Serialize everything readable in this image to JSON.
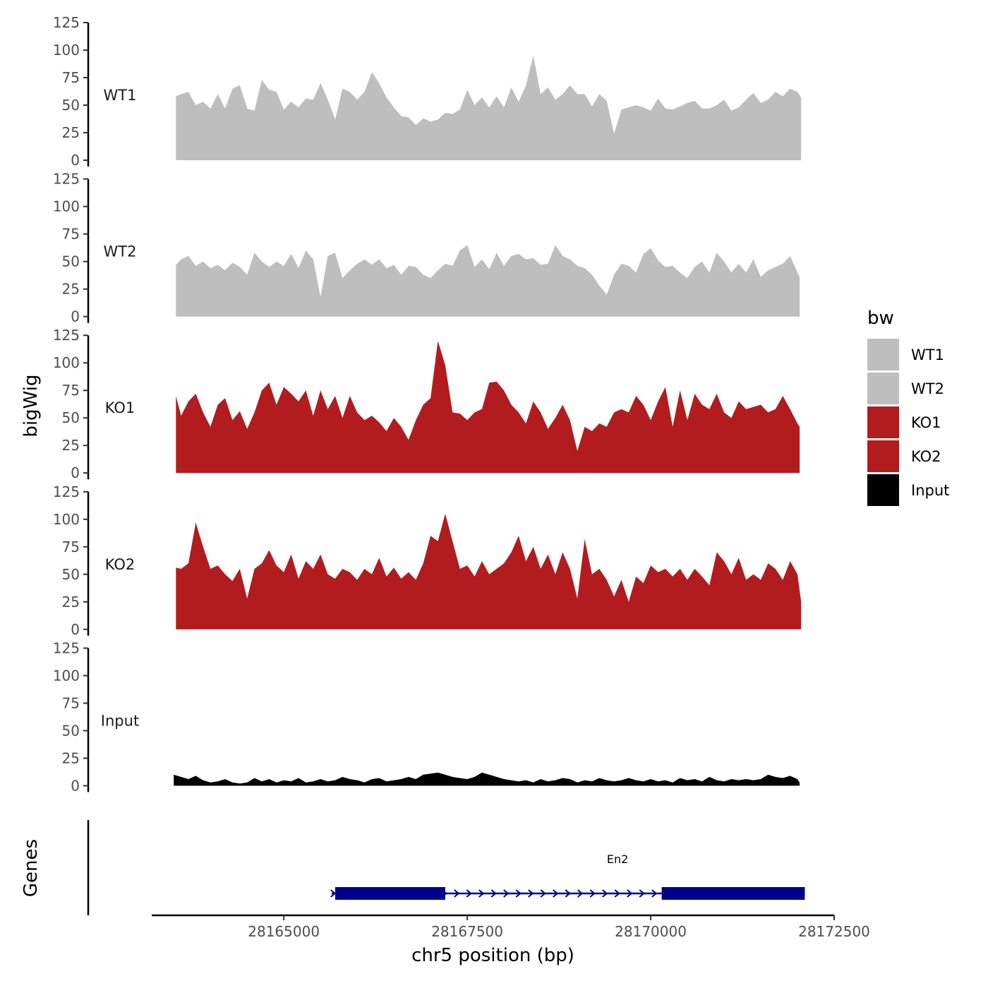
{
  "chart_data": {
    "type": "area",
    "layout": "stacked coverage tracks with gene annotation track",
    "ylabel": "bigWig",
    "xlabel": "chr5 position (bp)",
    "gene_track_label": "Genes",
    "chrom": "chr5",
    "xlim": [
      28163200,
      28172500
    ],
    "x_ticks": [
      28165000,
      28167500,
      28170000,
      28172500
    ],
    "x_tick_labels": [
      "28165000",
      "28167500",
      "28170000",
      "28172500"
    ],
    "ylim": [
      0,
      125
    ],
    "y_ticks": [
      0,
      25,
      50,
      75,
      100,
      125
    ],
    "y_tick_labels": [
      "0",
      "25",
      "50",
      "75",
      "100",
      "125"
    ],
    "grid": false,
    "legend": {
      "title": "bw",
      "placement": "right",
      "entries": [
        {
          "label": "WT1",
          "color": "#bebebe"
        },
        {
          "label": "WT2",
          "color": "#bebebe"
        },
        {
          "label": "KO1",
          "color": "#b21c1e"
        },
        {
          "label": "KO2",
          "color": "#b21c1e"
        },
        {
          "label": "Input",
          "color": "#000000"
        }
      ]
    },
    "series": [
      {
        "name": "WT1",
        "color": "#bebebe",
        "x": [
          28163530,
          28163600,
          28163700,
          28163800,
          28163900,
          28164000,
          28164100,
          28164200,
          28164300,
          28164400,
          28164500,
          28164600,
          28164700,
          28164800,
          28164900,
          28165000,
          28165100,
          28165200,
          28165300,
          28165400,
          28165500,
          28165600,
          28165700,
          28165800,
          28165900,
          28166000,
          28166100,
          28166200,
          28166300,
          28166400,
          28166500,
          28166600,
          28166700,
          28166800,
          28166900,
          28167000,
          28167100,
          28167200,
          28167300,
          28167400,
          28167500,
          28167600,
          28167700,
          28167800,
          28167900,
          28168000,
          28168100,
          28168200,
          28168300,
          28168400,
          28168500,
          28168600,
          28168700,
          28168800,
          28168900,
          28169000,
          28169100,
          28169200,
          28169300,
          28169400,
          28169500,
          28169600,
          28169700,
          28169800,
          28169900,
          28170000,
          28170100,
          28170200,
          28170300,
          28170400,
          28170500,
          28170600,
          28170700,
          28170800,
          28170900,
          28171000,
          28171100,
          28171200,
          28171300,
          28171400,
          28171500,
          28171600,
          28171700,
          28171800,
          28171900,
          28172000,
          28172050
        ],
        "values": [
          58,
          60,
          62,
          50,
          53,
          47,
          60,
          47,
          65,
          68,
          47,
          45,
          73,
          64,
          62,
          46,
          53,
          48,
          56,
          55,
          70,
          55,
          37,
          65,
          62,
          55,
          62,
          80,
          70,
          57,
          48,
          40,
          39,
          32,
          38,
          35,
          37,
          43,
          42,
          46,
          64,
          50,
          57,
          48,
          58,
          48,
          66,
          53,
          68,
          95,
          60,
          66,
          55,
          60,
          68,
          60,
          60,
          49,
          60,
          54,
          24,
          46,
          48,
          50,
          48,
          45,
          56,
          47,
          46,
          49,
          52,
          54,
          47,
          47,
          50,
          55,
          45,
          48,
          55,
          61,
          52,
          55,
          62,
          58,
          65,
          62,
          57
        ]
      },
      {
        "name": "WT2",
        "color": "#bebebe",
        "x": [
          28163530,
          28163600,
          28163700,
          28163800,
          28163900,
          28164000,
          28164100,
          28164200,
          28164300,
          28164400,
          28164500,
          28164600,
          28164700,
          28164800,
          28164900,
          28165000,
          28165100,
          28165200,
          28165300,
          28165400,
          28165500,
          28165600,
          28165700,
          28165800,
          28165900,
          28166000,
          28166100,
          28166200,
          28166300,
          28166400,
          28166500,
          28166600,
          28166700,
          28166800,
          28166900,
          28167000,
          28167100,
          28167200,
          28167300,
          28167400,
          28167500,
          28167600,
          28167700,
          28167800,
          28167900,
          28168000,
          28168100,
          28168200,
          28168300,
          28168400,
          28168500,
          28168600,
          28168700,
          28168800,
          28168900,
          28169000,
          28169100,
          28169200,
          28169300,
          28169400,
          28169500,
          28169600,
          28169700,
          28169800,
          28169900,
          28170000,
          28170100,
          28170200,
          28170300,
          28170400,
          28170500,
          28170600,
          28170700,
          28170800,
          28170900,
          28171000,
          28171100,
          28171200,
          28171300,
          28171400,
          28171500,
          28171600,
          28171700,
          28171800,
          28171900,
          28172000,
          28172030
        ],
        "values": [
          47,
          52,
          55,
          46,
          50,
          44,
          47,
          42,
          49,
          45,
          38,
          58,
          50,
          45,
          50,
          46,
          57,
          44,
          60,
          52,
          18,
          55,
          58,
          35,
          42,
          48,
          52,
          47,
          52,
          44,
          47,
          38,
          46,
          45,
          38,
          35,
          42,
          48,
          46,
          60,
          65,
          45,
          52,
          43,
          58,
          46,
          55,
          57,
          52,
          53,
          47,
          48,
          65,
          55,
          52,
          46,
          44,
          38,
          28,
          20,
          38,
          48,
          46,
          40,
          57,
          62,
          51,
          45,
          46,
          40,
          35,
          45,
          50,
          40,
          58,
          50,
          40,
          48,
          40,
          52,
          36,
          42,
          45,
          48,
          55,
          40,
          36
        ]
      },
      {
        "name": "KO1",
        "color": "#b21c1e",
        "x": [
          28163530,
          28163600,
          28163700,
          28163800,
          28163900,
          28164000,
          28164100,
          28164200,
          28164300,
          28164400,
          28164500,
          28164600,
          28164700,
          28164800,
          28164900,
          28165000,
          28165100,
          28165200,
          28165300,
          28165400,
          28165500,
          28165600,
          28165700,
          28165800,
          28165900,
          28166000,
          28166100,
          28166200,
          28166300,
          28166400,
          28166500,
          28166600,
          28166700,
          28166800,
          28166900,
          28167000,
          28167100,
          28167200,
          28167300,
          28167400,
          28167500,
          28167600,
          28167700,
          28167800,
          28167900,
          28168000,
          28168100,
          28168200,
          28168300,
          28168400,
          28168500,
          28168600,
          28168700,
          28168800,
          28168900,
          28169000,
          28169100,
          28169200,
          28169300,
          28169400,
          28169500,
          28169600,
          28169700,
          28169800,
          28169900,
          28170000,
          28170100,
          28170200,
          28170300,
          28170400,
          28170500,
          28170600,
          28170700,
          28170800,
          28170900,
          28171000,
          28171100,
          28171200,
          28171300,
          28171400,
          28171500,
          28171600,
          28171700,
          28171800,
          28171900,
          28172000,
          28172030
        ],
        "values": [
          70,
          52,
          65,
          72,
          55,
          42,
          62,
          68,
          48,
          56,
          40,
          55,
          75,
          82,
          62,
          78,
          72,
          65,
          75,
          52,
          75,
          58,
          70,
          50,
          70,
          55,
          48,
          52,
          46,
          38,
          50,
          42,
          30,
          48,
          62,
          68,
          120,
          98,
          55,
          54,
          48,
          55,
          58,
          82,
          83,
          75,
          62,
          55,
          45,
          65,
          55,
          40,
          50,
          62,
          48,
          20,
          42,
          38,
          45,
          42,
          55,
          58,
          55,
          70,
          62,
          48,
          65,
          78,
          42,
          75,
          48,
          72,
          62,
          58,
          72,
          55,
          50,
          65,
          58,
          60,
          62,
          55,
          58,
          70,
          58,
          45,
          42
        ]
      },
      {
        "name": "KO2",
        "color": "#b21c1e",
        "x": [
          28163530,
          28163600,
          28163700,
          28163800,
          28163900,
          28164000,
          28164100,
          28164200,
          28164300,
          28164400,
          28164500,
          28164600,
          28164700,
          28164800,
          28164900,
          28165000,
          28165100,
          28165200,
          28165300,
          28165400,
          28165500,
          28165600,
          28165700,
          28165800,
          28165900,
          28166000,
          28166100,
          28166200,
          28166300,
          28166400,
          28166500,
          28166600,
          28166700,
          28166800,
          28166900,
          28167000,
          28167100,
          28167200,
          28167300,
          28167400,
          28167500,
          28167600,
          28167700,
          28167800,
          28167900,
          28168000,
          28168100,
          28168200,
          28168300,
          28168400,
          28168500,
          28168600,
          28168700,
          28168800,
          28168900,
          28169000,
          28169100,
          28169200,
          28169300,
          28169400,
          28169500,
          28169600,
          28169700,
          28169800,
          28169900,
          28170000,
          28170100,
          28170200,
          28170300,
          28170400,
          28170500,
          28170600,
          28170700,
          28170800,
          28170900,
          28171000,
          28171100,
          28171200,
          28171300,
          28171400,
          28171500,
          28171600,
          28171700,
          28171800,
          28171900,
          28172000,
          28172050
        ],
        "values": [
          56,
          55,
          60,
          97,
          75,
          55,
          58,
          50,
          44,
          55,
          28,
          55,
          60,
          72,
          58,
          52,
          68,
          46,
          62,
          55,
          68,
          50,
          46,
          55,
          52,
          45,
          55,
          50,
          65,
          48,
          56,
          46,
          52,
          45,
          60,
          85,
          80,
          105,
          80,
          55,
          58,
          48,
          62,
          50,
          55,
          60,
          70,
          85,
          62,
          75,
          55,
          68,
          50,
          70,
          55,
          28,
          82,
          50,
          55,
          45,
          30,
          45,
          25,
          48,
          42,
          58,
          52,
          55,
          48,
          55,
          45,
          55,
          48,
          40,
          70,
          62,
          50,
          65,
          45,
          50,
          45,
          60,
          55,
          45,
          62,
          50,
          25
        ]
      },
      {
        "name": "Input",
        "color": "#000000",
        "x": [
          28163500,
          28163600,
          28163700,
          28163800,
          28163900,
          28164000,
          28164100,
          28164200,
          28164300,
          28164400,
          28164500,
          28164600,
          28164700,
          28164800,
          28164900,
          28165000,
          28165100,
          28165200,
          28165300,
          28165400,
          28165500,
          28165600,
          28165700,
          28165800,
          28165900,
          28166000,
          28166100,
          28166200,
          28166300,
          28166400,
          28166500,
          28166600,
          28166700,
          28166800,
          28166900,
          28167000,
          28167100,
          28167200,
          28167300,
          28167400,
          28167500,
          28167600,
          28167700,
          28167800,
          28167900,
          28168000,
          28168100,
          28168200,
          28168300,
          28168400,
          28168500,
          28168600,
          28168700,
          28168800,
          28168900,
          28169000,
          28169100,
          28169200,
          28169300,
          28169400,
          28169500,
          28169600,
          28169700,
          28169800,
          28169900,
          28170000,
          28170100,
          28170200,
          28170300,
          28170400,
          28170500,
          28170600,
          28170700,
          28170800,
          28170900,
          28171000,
          28171100,
          28171200,
          28171300,
          28171400,
          28171500,
          28171600,
          28171700,
          28171800,
          28171900,
          28172000,
          28172030
        ],
        "values": [
          10,
          8,
          6,
          9,
          5,
          3,
          4,
          6,
          3,
          2,
          3,
          7,
          4,
          6,
          3,
          5,
          4,
          7,
          3,
          4,
          6,
          4,
          5,
          8,
          6,
          5,
          3,
          6,
          7,
          4,
          5,
          6,
          8,
          6,
          10,
          11,
          12,
          10,
          8,
          7,
          6,
          8,
          12,
          10,
          8,
          6,
          5,
          4,
          5,
          3,
          6,
          4,
          5,
          7,
          6,
          3,
          5,
          4,
          7,
          5,
          4,
          5,
          7,
          5,
          4,
          6,
          4,
          5,
          3,
          7,
          5,
          6,
          4,
          8,
          5,
          4,
          6,
          5,
          6,
          5,
          6,
          10,
          8,
          7,
          9,
          6,
          3
        ]
      }
    ],
    "genes": [
      {
        "name": "En2",
        "strand": "+",
        "start": 28165650,
        "end": 28172100,
        "exons": [
          [
            28165700,
            28167200
          ],
          [
            28170150,
            28172100
          ]
        ]
      }
    ]
  }
}
